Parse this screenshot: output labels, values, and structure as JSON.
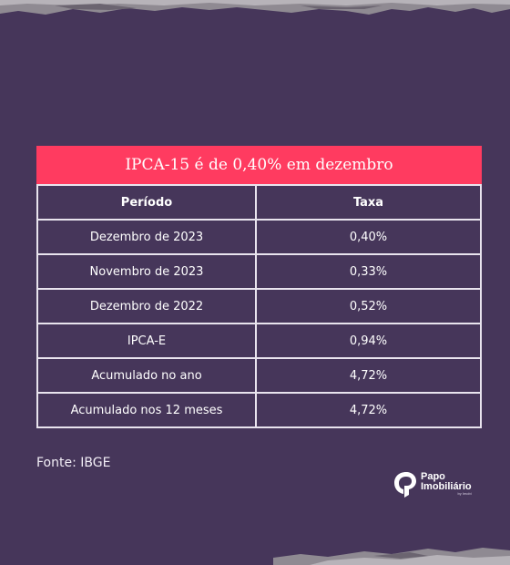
{
  "chart_data": {
    "type": "table",
    "title": "IPCA-15 é de 0,40% em dezembro",
    "columns": [
      "Período",
      "Taxa"
    ],
    "rows": [
      [
        "Dezembro de 2023",
        "0,40%"
      ],
      [
        "Novembro de 2023",
        "0,33%"
      ],
      [
        "Dezembro de 2022",
        "0,52%"
      ],
      [
        "IPCA-E",
        "0,94%"
      ],
      [
        "Acumulado no ano",
        "4,72%"
      ],
      [
        "Acumulado nos 12 meses",
        "4,72%"
      ]
    ]
  },
  "source": "Fonte: IBGE",
  "logo": {
    "line1": "Papo",
    "line2": "Imobiliário",
    "line3": "by Imobi"
  },
  "colors": {
    "background": "#46365a",
    "title_bar": "#ff3b60",
    "grid_lines": "#e9e4ee",
    "text": "#ffffff"
  },
  "icons": {
    "logo_mark": "papo-imobiliario-logo-icon"
  }
}
